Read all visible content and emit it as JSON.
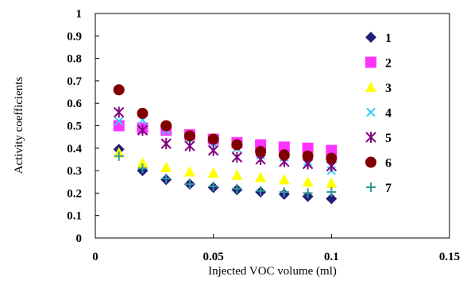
{
  "chart_data": {
    "type": "scatter",
    "xlabel": "Injected VOC volume (ml)",
    "ylabel": "Activity coefficients",
    "xlim": [
      0,
      0.15
    ],
    "ylim": [
      0,
      1
    ],
    "x_ticks": [
      "0",
      "0.05",
      "0.1",
      "0.15"
    ],
    "y_ticks": [
      "0",
      "0.1",
      "0.2",
      "0.3",
      "0.4",
      "0.5",
      "0.6",
      "0.7",
      "0.8",
      "0.9",
      "1"
    ],
    "grid": false,
    "legend_position": "right",
    "x": [
      0.01,
      0.02,
      0.03,
      0.04,
      0.05,
      0.06,
      0.07,
      0.08,
      0.09,
      0.1
    ],
    "series": [
      {
        "name": "1",
        "marker": "diamond",
        "color": "#1f1f7a",
        "values": [
          0.395,
          0.3,
          0.26,
          0.24,
          0.225,
          0.215,
          0.205,
          0.195,
          0.185,
          0.175
        ]
      },
      {
        "name": "2",
        "marker": "square",
        "color": "#ff33ff",
        "values": [
          0.5,
          0.49,
          0.48,
          0.46,
          0.44,
          0.425,
          0.415,
          0.405,
          0.4,
          0.39
        ]
      },
      {
        "name": "3",
        "marker": "triangle",
        "color": "#ffff00",
        "values": [
          0.38,
          0.335,
          0.315,
          0.295,
          0.29,
          0.28,
          0.27,
          0.26,
          0.25,
          0.245
        ]
      },
      {
        "name": "4",
        "marker": "x",
        "color": "#33ccff",
        "values": [
          0.52,
          0.525,
          0.48,
          0.44,
          0.42,
          0.4,
          0.37,
          0.36,
          0.34,
          0.3
        ]
      },
      {
        "name": "5",
        "marker": "star",
        "color": "#800080",
        "values": [
          0.56,
          0.48,
          0.42,
          0.41,
          0.39,
          0.36,
          0.35,
          0.34,
          0.33,
          0.32
        ]
      },
      {
        "name": "6",
        "marker": "circle",
        "color": "#800000",
        "values": [
          0.66,
          0.555,
          0.5,
          0.455,
          0.44,
          0.415,
          0.385,
          0.37,
          0.365,
          0.355
        ]
      },
      {
        "name": "7",
        "marker": "plus",
        "color": "#339999",
        "values": [
          0.365,
          0.31,
          0.265,
          0.24,
          0.23,
          0.22,
          0.21,
          0.205,
          0.2,
          0.205
        ]
      }
    ]
  }
}
